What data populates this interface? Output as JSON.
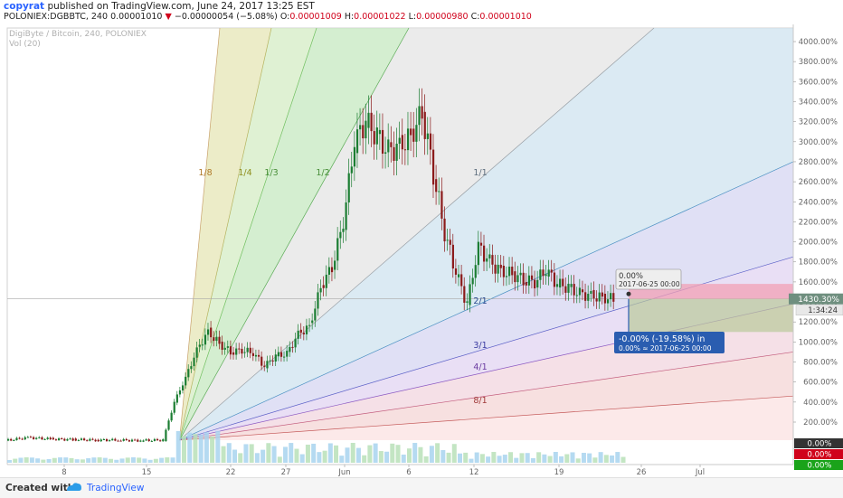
{
  "header": {
    "author": "copyrat",
    "published": "published on TradingView.com, June 24, 2017 13:25 EST",
    "symbol": "POLONIEX:DGBBTC, 240",
    "price": "0.00001010",
    "change_arrow": "▼",
    "change": "−0.00000054 (−5.08%)",
    "open_label": "O:",
    "open": "0.00001009",
    "high_label": "H:",
    "high": "0.00001022",
    "low_label": "L:",
    "low": "0.00000980",
    "close_label": "C:",
    "close": "0.00001010"
  },
  "chart_meta": {
    "watermark_title": "DigiByte / Bitcoin, 240, POLONIEX",
    "watermark_vol": "Vol (20)",
    "last_value_label": "1430.30%",
    "countdown_label": "1:34:24",
    "badge_1": "0.00%",
    "badge_2": "0.00%",
    "badge_3": "0.00%",
    "tooltip_top_value": "0.00%",
    "tooltip_top_date": "2017-06-25 00:00",
    "tooltip_bottom_line1": "-0.00% (-19.58%) in",
    "tooltip_bottom_line2": "0.00%  ≈  2017-06-25  00:00"
  },
  "colors": {
    "up": "#1b7d32",
    "down": "#8b1a1a",
    "volume": "#a8d4ee",
    "volume_up": "#b9e0b9",
    "tooltip_blue": "#2a5db0"
  },
  "chart_data": {
    "type": "line",
    "y_axis_unit": "percent",
    "y_ticks": [
      "4000.00%",
      "3800.00%",
      "3600.00%",
      "3400.00%",
      "3200.00%",
      "3000.00%",
      "2800.00%",
      "2600.00%",
      "2400.00%",
      "2200.00%",
      "2000.00%",
      "1800.00%",
      "1600.00%",
      "1400.00%",
      "1200.00%",
      "1000.00%",
      "800.00%",
      "600.00%",
      "400.00%",
      "200.00%"
    ],
    "x_ticks": [
      "8",
      "15",
      "22",
      "27",
      "Jun",
      "6",
      "12",
      "19",
      "26",
      "Jul"
    ],
    "gann_fan_labels": [
      "1/8",
      "1/4",
      "1/3",
      "1/2",
      "1/1",
      "2/1",
      "3/1",
      "4/1",
      "8/1"
    ],
    "series": [
      {
        "x": [
          "May 1",
          "May 3",
          "May 5",
          "May 7",
          "May 9",
          "May 11",
          "May 13",
          "May 15",
          "May 16",
          "May 17",
          "May 18",
          "May 19",
          "May 20",
          "May 21",
          "May 22",
          "May 23",
          "May 24",
          "May 25",
          "May 26",
          "May 27",
          "May 28",
          "May 29",
          "May 30",
          "May 31",
          "Jun 1",
          "Jun 2",
          "Jun 3",
          "Jun 4",
          "Jun 5",
          "Jun 6",
          "Jun 7",
          "Jun 8",
          "Jun 9",
          "Jun 10",
          "Jun 11",
          "Jun 12",
          "Jun 13",
          "Jun 14",
          "Jun 15",
          "Jun 16",
          "Jun 17",
          "Jun 18",
          "Jun 19",
          "Jun 20",
          "Jun 21",
          "Jun 22",
          "Jun 23",
          "Jun 24"
        ],
        "values": [
          15,
          45,
          30,
          25,
          20,
          20,
          15,
          20,
          400,
          640,
          920,
          1100,
          980,
          900,
          920,
          890,
          760,
          860,
          880,
          1080,
          1150,
          1550,
          1750,
          2200,
          3000,
          3200,
          3050,
          2900,
          2950,
          3050,
          3300,
          2700,
          2100,
          1700,
          1380,
          1950,
          1800,
          1700,
          1680,
          1620,
          1600,
          1720,
          1580,
          1540,
          1480,
          1460,
          1440,
          1430
        ]
      }
    ],
    "projection": {
      "from": 1430,
      "to": 1100
    }
  }
}
